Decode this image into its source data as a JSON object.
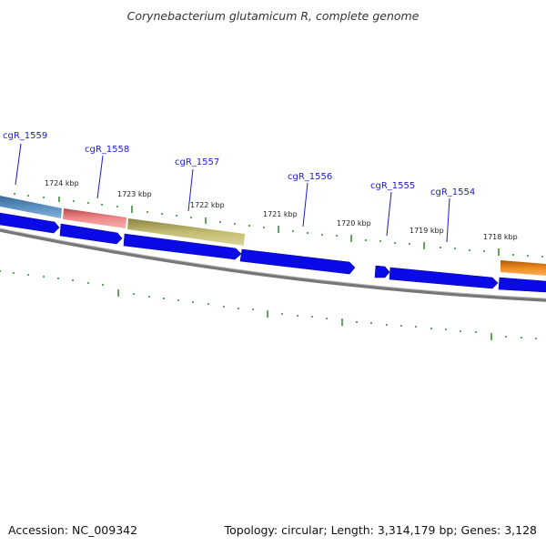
{
  "title": "Corynebacterium glutamicum R, complete genome",
  "footer": {
    "accession": "Accession: NC_009342",
    "summary": "Topology: circular; Length: 3,314,179 bp; Genes: 3,128"
  },
  "colors": {
    "cds_blue": "#0a0ae6",
    "backbone": "#808080",
    "ticks": "#2a8a2a",
    "gene_label": "#1a1acc",
    "feature_steelblue": "#4a7fae",
    "feature_pink": "#ee8888",
    "feature_olive": "#c2bb72",
    "feature_orange": "#f08a1c"
  },
  "gene_labels": [
    "cgR_1559",
    "cgR_1558",
    "cgR_1557",
    "cgR_1556",
    "cgR_1555",
    "cgR_1554"
  ],
  "kbp_labels": [
    "1724 kbp",
    "1723 kbp",
    "1722 kbp",
    "1721 kbp",
    "1720 kbp",
    "1719 kbp",
    "1718 kbp"
  ]
}
